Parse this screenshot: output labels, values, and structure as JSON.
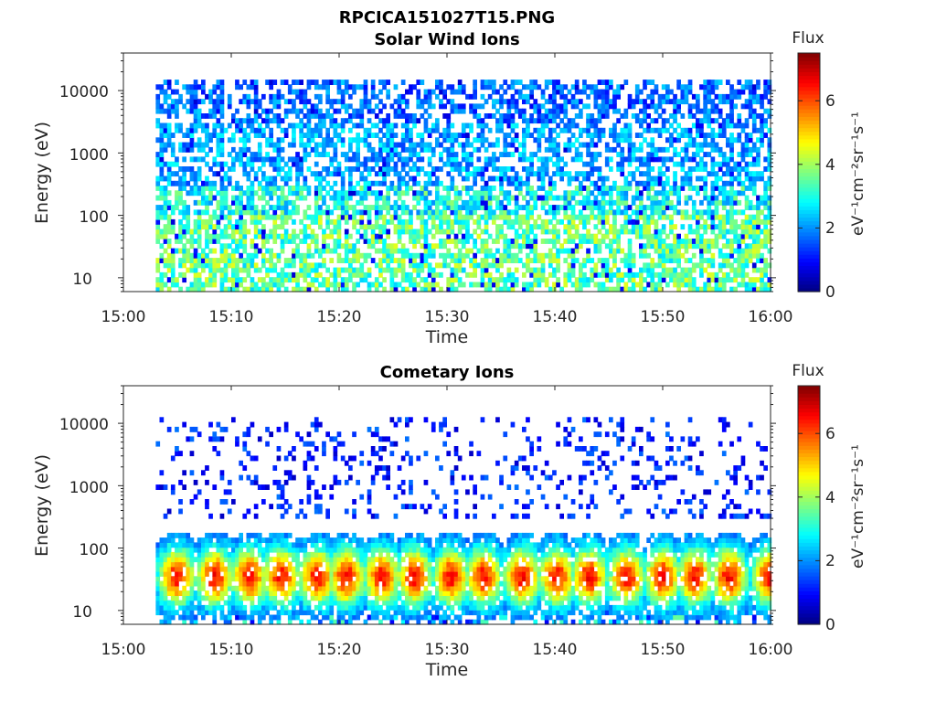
{
  "figure_title": "RPCICA151027T15.PNG",
  "colors": {
    "background": "#ffffff",
    "axis": "#262626"
  },
  "chart_data": [
    {
      "type": "heatmap",
      "title": "Solar Wind Ions",
      "xlabel": "Time",
      "ylabel": "Energy (eV)",
      "x_range": [
        "15:00",
        "16:00"
      ],
      "x_ticks": [
        "15:00",
        "15:10",
        "15:20",
        "15:30",
        "15:40",
        "15:50",
        "16:00"
      ],
      "y_scale": "log",
      "ylim": [
        6,
        40000
      ],
      "y_ticks": [
        10,
        100,
        1000,
        10000
      ],
      "y_tick_labels": [
        "10",
        "100",
        "1000",
        "10000"
      ],
      "data_start": "15:03",
      "colormap": "jet",
      "colorbar": {
        "title": "Flux",
        "label": "eV⁻¹cm⁻²sr⁻¹s⁻¹",
        "range": [
          0,
          7.5
        ],
        "ticks": [
          "0",
          "2",
          "4",
          "6"
        ]
      },
      "description_values": {
        "high_energy_band": [
          1000,
          15000
        ],
        "high_energy_flux": [
          1,
          2.5
        ],
        "low_energy_band": [
          10,
          300
        ],
        "low_energy_flux": [
          2.5,
          4.5
        ],
        "peak_flux": 5
      }
    },
    {
      "type": "heatmap",
      "title": "Cometary Ions",
      "xlabel": "Time",
      "ylabel": "Energy (eV)",
      "x_range": [
        "15:00",
        "16:00"
      ],
      "x_ticks": [
        "15:00",
        "15:10",
        "15:20",
        "15:30",
        "15:40",
        "15:50",
        "16:00"
      ],
      "y_scale": "log",
      "ylim": [
        6,
        40000
      ],
      "y_ticks": [
        10,
        100,
        1000,
        10000
      ],
      "y_tick_labels": [
        "10",
        "100",
        "1000",
        "10000"
      ],
      "data_start": "15:03",
      "colormap": "jet",
      "colorbar": {
        "title": "Flux",
        "label": "eV⁻¹cm⁻²sr⁻¹s⁻¹",
        "range": [
          0,
          7.5
        ],
        "ticks": [
          "0",
          "2",
          "4",
          "6"
        ]
      },
      "bursts_minutes": [
        4.8,
        8.3,
        11.5,
        14.5,
        17.8,
        20.5,
        23.8,
        26.8,
        30.2,
        33.2,
        36.8,
        40.0,
        43.0,
        46.5,
        49.8,
        52.8,
        56.0,
        59.8
      ],
      "burst_peak_energy_eV": 35,
      "burst_peak_flux": 6.5,
      "sparse_high_energy_band": [
        300,
        12000
      ]
    }
  ]
}
